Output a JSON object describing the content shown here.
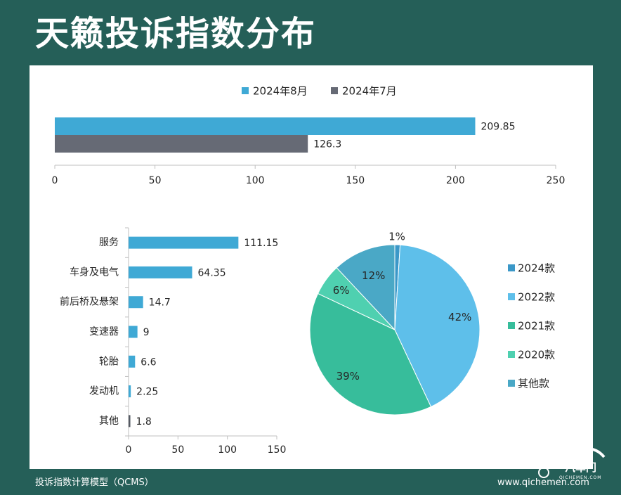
{
  "header": {
    "title": "天籁投诉指数分布"
  },
  "footer": {
    "left": "投诉指数计算模型（QCMS）",
    "right": "www.qichemen.com"
  },
  "watermark": {
    "text": "汽车门",
    "sub": "QICHEMEN.COM"
  },
  "colors": {
    "background": "#255f58",
    "bar_blue": "#3fa9d5",
    "bar_gray": "#666a75",
    "pie_2024": "#3b98c8",
    "pie_2022": "#5ebfea",
    "pie_2021": "#37bd9b",
    "pie_2020": "#4fd0b0",
    "pie_other": "#4aa8c6"
  },
  "chart_data": [
    {
      "type": "bar",
      "orientation": "horizontal",
      "series": [
        {
          "name": "2024年8月",
          "values": [
            209.85
          ],
          "labels": [
            "209.85"
          ]
        },
        {
          "name": "2024年7月",
          "values": [
            126.3
          ],
          "labels": [
            "126.3"
          ]
        }
      ],
      "xlim": [
        0,
        250
      ],
      "xticks": [
        "0",
        "50",
        "100",
        "150",
        "200",
        "250"
      ],
      "legend": "top-center"
    },
    {
      "type": "bar",
      "orientation": "horizontal",
      "categories": [
        "服务",
        "车身及电气",
        "前后桥及悬架",
        "变速器",
        "轮胎",
        "发动机",
        "其他"
      ],
      "values": [
        111.15,
        64.35,
        14.7,
        9,
        6.6,
        2.25,
        1.8
      ],
      "labels": [
        "111.15",
        "64.35",
        "14.7",
        "9",
        "6.6",
        "2.25",
        "1.8"
      ],
      "xlim": [
        0,
        150
      ],
      "xticks": [
        "0",
        "50",
        "100",
        "150"
      ]
    },
    {
      "type": "pie",
      "categories": [
        "2024款",
        "2022款",
        "2021款",
        "2020款",
        "其他款"
      ],
      "values": [
        1,
        42,
        39,
        6,
        12
      ],
      "labels": [
        "1%",
        "42%",
        "39%",
        "6%",
        "12%"
      ],
      "legend": "right"
    }
  ]
}
